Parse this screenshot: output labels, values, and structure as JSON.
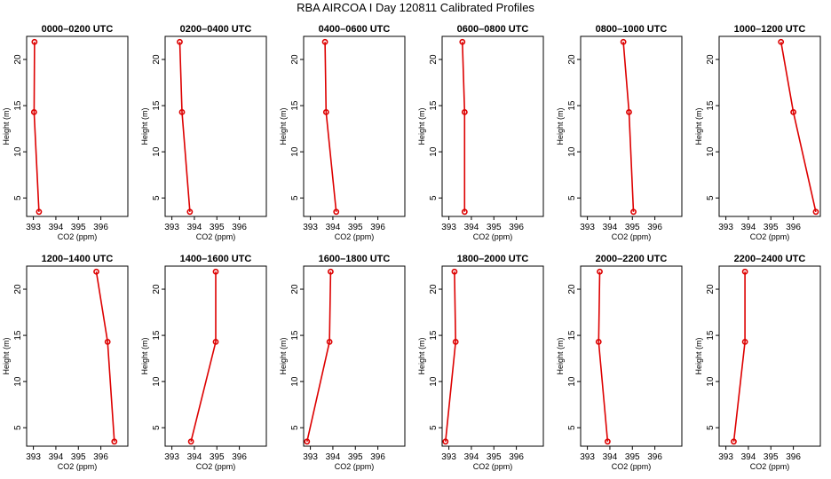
{
  "figure": {
    "title": "RBA AIRCOA  I  Day 120811  Calibrated Profiles",
    "line_color": "#dd0000"
  },
  "chart_data": [
    {
      "type": "line",
      "title": "0000–0200 UTC",
      "xlabel": "CO2 (ppm)",
      "ylabel": "Height (m)",
      "xlim": [
        392.7,
        397.2
      ],
      "ylim": [
        3,
        22.5
      ],
      "x_ticks": [
        "393",
        "394",
        "395",
        "396"
      ],
      "y_ticks": [
        "5",
        "10",
        "15",
        "20"
      ],
      "series": [
        {
          "x": [
            393.25,
            393.03,
            393.05
          ],
          "y": [
            3.5,
            14.3,
            21.9
          ]
        }
      ]
    },
    {
      "type": "line",
      "title": "0200–0400 UTC",
      "xlabel": "CO2 (ppm)",
      "ylabel": "Height (m)",
      "xlim": [
        392.7,
        397.2
      ],
      "ylim": [
        3,
        22.5
      ],
      "x_ticks": [
        "393",
        "394",
        "395",
        "396"
      ],
      "y_ticks": [
        "5",
        "10",
        "15",
        "20"
      ],
      "series": [
        {
          "x": [
            393.8,
            393.45,
            393.35
          ],
          "y": [
            3.5,
            14.3,
            21.9
          ]
        }
      ]
    },
    {
      "type": "line",
      "title": "0400–0600 UTC",
      "xlabel": "CO2 (ppm)",
      "ylabel": "Height (m)",
      "xlim": [
        392.7,
        397.2
      ],
      "ylim": [
        3,
        22.5
      ],
      "x_ticks": [
        "393",
        "394",
        "395",
        "396"
      ],
      "y_ticks": [
        "5",
        "10",
        "15",
        "20"
      ],
      "series": [
        {
          "x": [
            394.15,
            393.7,
            393.65
          ],
          "y": [
            3.5,
            14.3,
            21.9
          ]
        }
      ]
    },
    {
      "type": "line",
      "title": "0600–0800 UTC",
      "xlabel": "CO2 (ppm)",
      "ylabel": "Height (m)",
      "xlim": [
        392.7,
        397.2
      ],
      "ylim": [
        3,
        22.5
      ],
      "x_ticks": [
        "393",
        "394",
        "395",
        "396"
      ],
      "y_ticks": [
        "5",
        "10",
        "15",
        "20"
      ],
      "series": [
        {
          "x": [
            393.7,
            393.7,
            393.6
          ],
          "y": [
            3.5,
            14.3,
            21.9
          ]
        }
      ]
    },
    {
      "type": "line",
      "title": "0800–1000 UTC",
      "xlabel": "CO2 (ppm)",
      "ylabel": "Height (m)",
      "xlim": [
        392.7,
        397.2
      ],
      "ylim": [
        3,
        22.5
      ],
      "x_ticks": [
        "393",
        "394",
        "395",
        "396"
      ],
      "y_ticks": [
        "5",
        "10",
        "15",
        "20"
      ],
      "series": [
        {
          "x": [
            395.05,
            394.85,
            394.6
          ],
          "y": [
            3.5,
            14.3,
            21.9
          ]
        }
      ]
    },
    {
      "type": "line",
      "title": "1000–1200 UTC",
      "xlabel": "CO2 (ppm)",
      "ylabel": "Height (m)",
      "xlim": [
        392.7,
        397.2
      ],
      "ylim": [
        3,
        22.5
      ],
      "x_ticks": [
        "393",
        "394",
        "395",
        "396"
      ],
      "y_ticks": [
        "5",
        "10",
        "15",
        "20"
      ],
      "series": [
        {
          "x": [
            397.0,
            396.0,
            395.45
          ],
          "y": [
            3.5,
            14.3,
            21.9
          ]
        }
      ]
    },
    {
      "type": "line",
      "title": "1200–1400 UTC",
      "xlabel": "CO2 (ppm)",
      "ylabel": "Height (m)",
      "xlim": [
        392.7,
        397.2
      ],
      "ylim": [
        3,
        22.5
      ],
      "x_ticks": [
        "393",
        "394",
        "395",
        "396"
      ],
      "y_ticks": [
        "5",
        "10",
        "15",
        "20"
      ],
      "series": [
        {
          "x": [
            396.6,
            396.3,
            395.8
          ],
          "y": [
            3.5,
            14.3,
            21.9
          ]
        }
      ]
    },
    {
      "type": "line",
      "title": "1400–1600 UTC",
      "xlabel": "CO2 (ppm)",
      "ylabel": "Height (m)",
      "xlim": [
        392.7,
        397.2
      ],
      "ylim": [
        3,
        22.5
      ],
      "x_ticks": [
        "393",
        "394",
        "395",
        "396"
      ],
      "y_ticks": [
        "5",
        "10",
        "15",
        "20"
      ],
      "series": [
        {
          "x": [
            393.85,
            394.95,
            394.95
          ],
          "y": [
            3.5,
            14.3,
            21.9
          ]
        }
      ]
    },
    {
      "type": "line",
      "title": "1600–1800 UTC",
      "xlabel": "CO2 (ppm)",
      "ylabel": "Height (m)",
      "xlim": [
        392.7,
        397.2
      ],
      "ylim": [
        3,
        22.5
      ],
      "x_ticks": [
        "393",
        "394",
        "395",
        "396"
      ],
      "y_ticks": [
        "5",
        "10",
        "15",
        "20"
      ],
      "series": [
        {
          "x": [
            392.85,
            393.85,
            393.9
          ],
          "y": [
            3.5,
            14.3,
            21.9
          ]
        }
      ]
    },
    {
      "type": "line",
      "title": "1800–2000 UTC",
      "xlabel": "CO2 (ppm)",
      "ylabel": "Height (m)",
      "xlim": [
        392.7,
        397.2
      ],
      "ylim": [
        3,
        22.5
      ],
      "x_ticks": [
        "393",
        "394",
        "395",
        "396"
      ],
      "y_ticks": [
        "5",
        "10",
        "15",
        "20"
      ],
      "series": [
        {
          "x": [
            392.85,
            393.3,
            393.25
          ],
          "y": [
            3.5,
            14.3,
            21.9
          ]
        }
      ]
    },
    {
      "type": "line",
      "title": "2000–2200 UTC",
      "xlabel": "CO2 (ppm)",
      "ylabel": "Height (m)",
      "xlim": [
        392.7,
        397.2
      ],
      "ylim": [
        3,
        22.5
      ],
      "x_ticks": [
        "393",
        "394",
        "395",
        "396"
      ],
      "y_ticks": [
        "5",
        "10",
        "15",
        "20"
      ],
      "series": [
        {
          "x": [
            393.9,
            393.5,
            393.55
          ],
          "y": [
            3.5,
            14.3,
            21.9
          ]
        }
      ]
    },
    {
      "type": "line",
      "title": "2200–2400 UTC",
      "xlabel": "CO2 (ppm)",
      "ylabel": "Height (m)",
      "xlim": [
        392.7,
        397.2
      ],
      "ylim": [
        3,
        22.5
      ],
      "x_ticks": [
        "393",
        "394",
        "395",
        "396"
      ],
      "y_ticks": [
        "5",
        "10",
        "15",
        "20"
      ],
      "series": [
        {
          "x": [
            393.35,
            393.85,
            393.85
          ],
          "y": [
            3.5,
            14.3,
            21.9
          ]
        }
      ]
    }
  ]
}
